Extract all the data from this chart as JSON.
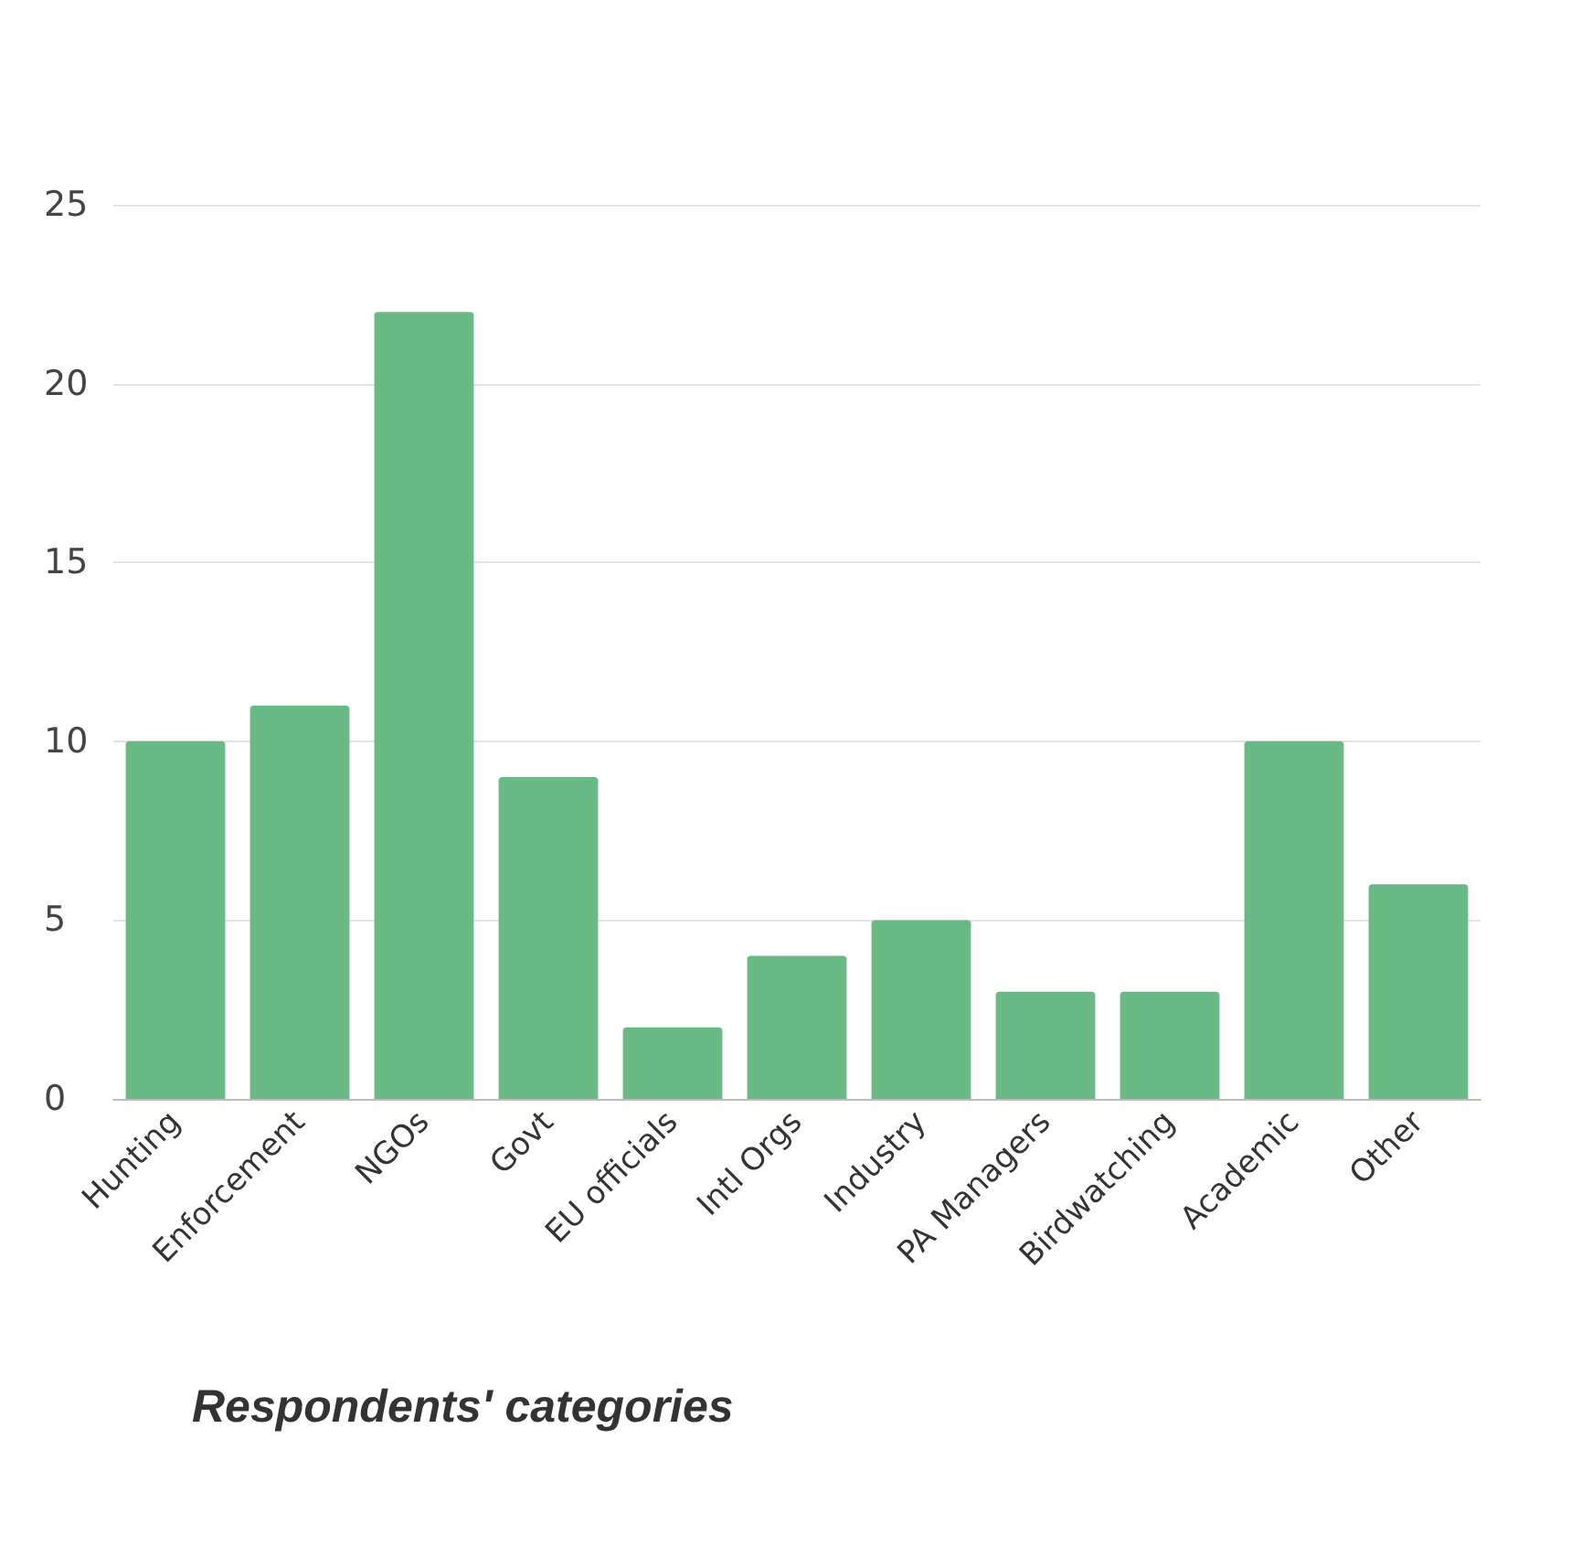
{
  "chart_data": {
    "type": "bar",
    "title": "Respondents' categories",
    "categories": [
      "Hunting",
      "Enforcement",
      "NGOs",
      "Govt",
      "EU officials",
      "Intl Orgs",
      "Industry",
      "PA Managers",
      "Birdwatching",
      "Academic",
      "Other"
    ],
    "values": [
      10,
      11,
      22,
      9,
      2,
      4,
      5,
      3,
      3,
      10,
      6
    ],
    "color": "#68ba84",
    "ylim": [
      0,
      25
    ],
    "yticks": [
      0,
      5,
      10,
      15,
      20,
      25
    ],
    "grid": "y"
  }
}
